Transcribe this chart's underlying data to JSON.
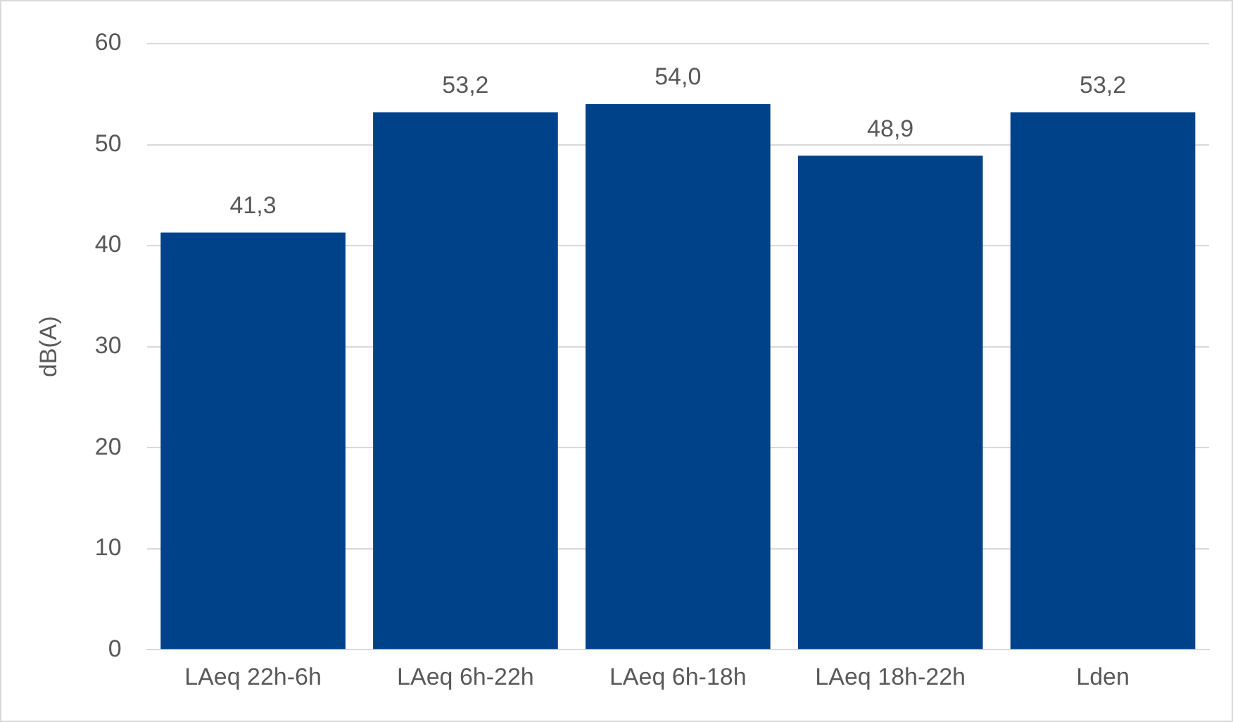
{
  "chart_data": {
    "type": "bar",
    "ylabel": "dB(A)",
    "categories": [
      "LAeq 22h-6h",
      "LAeq 6h-22h",
      "LAeq 6h-18h",
      "LAeq 18h-22h",
      "Lden"
    ],
    "values": [
      41.3,
      53.2,
      54.0,
      48.9,
      53.2
    ],
    "value_labels": [
      "41,3",
      "53,2",
      "54,0",
      "48,9",
      "53,2"
    ],
    "color": "#004289",
    "ylim": [
      0,
      60
    ],
    "yticks": [
      0,
      10,
      20,
      30,
      40,
      50,
      60
    ],
    "grid": "y",
    "legend": false
  }
}
